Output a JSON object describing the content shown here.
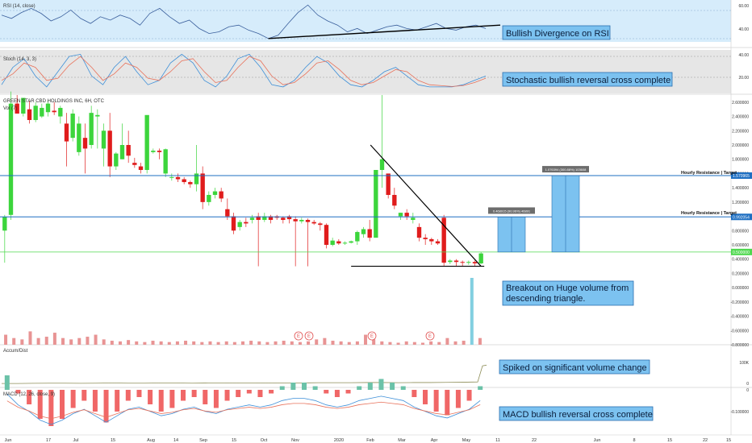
{
  "header": {
    "rsi_label": "RSI (14, close)",
    "stoch_label": "Stoch (14, 3, 3)",
    "main_label": "GREEN STAR CBD HOLDINGS INC, 6H, OTC",
    "vol_label": "Vol (7)",
    "accum_label": "Accum/Dist",
    "macd_label": "MACD (12, 26, close, 9)"
  },
  "annotations": {
    "rsi": "Bullish Divergence on RSI",
    "stoch": "Stochastic bullish reversal cross complete",
    "breakout_line1": "Breakout on Huge volume from",
    "breakout_line2": "descending triangle.",
    "accum": "Spiked on significant volume change",
    "macd": "MACD bullish reversal cross complete",
    "resistance_upper": "Hourly Resistance | Target",
    "resistance_lower": "Hourly Resistance | Target",
    "target_upper": "1.076394 (300.88%) 103608",
    "target_lower": "0.468915 (90.96%) 46891"
  },
  "events": [
    "E",
    "E",
    "E",
    "E"
  ],
  "colors": {
    "up": "#3cd53c",
    "down": "#e01c1c",
    "resistance": "#1e6fc2",
    "support": "#4fd84f",
    "target_box": "#7cc2f0",
    "rsi_bg": "#d6ecfb",
    "stoch_bg": "#e6e6e6",
    "rsi_line": "#3a5f9c",
    "stoch_k": "#3d8fd8",
    "stoch_d": "#e8715a",
    "accum_line": "#8d8d57",
    "macd_line": "#3d8fd8",
    "signal_line": "#e8715a",
    "price_label_bg": "#1e6fc2",
    "current_price_bg": "#4fd84f"
  },
  "chart_data": {
    "type": "candlestick",
    "title": "GREEN STAR CBD HOLDINGS INC, 6H, OTC",
    "x_ticks": [
      "Jun",
      "17",
      "Jul",
      "15",
      "Aug",
      "14",
      "Sep",
      "15",
      "Oct",
      "Nov",
      "2020",
      "Feb",
      "Mar",
      "Apr",
      "May",
      "11",
      "22",
      "Jun",
      "8",
      "15",
      "22",
      "15"
    ],
    "price_axis": {
      "ticks": [
        "2.600000",
        "2.400000",
        "2.200000",
        "2.000000",
        "1.800000",
        "1.600000",
        "1.400000",
        "1.200000",
        "1.000000",
        "0.800000",
        "0.600000",
        "0.400000",
        "0.200000",
        "0.000000",
        "-0.200000",
        "-0.400000",
        "-0.600000",
        "-0.800000"
      ],
      "ylim": [
        -0.8,
        2.7
      ]
    },
    "levels": {
      "resistance_upper": 1.570965,
      "resistance_upper_label": "1.570965",
      "resistance_lower": 0.992054,
      "resistance_lower_label": "0.992054",
      "current_price": 0.5,
      "current_price_label": "0.500000"
    },
    "candles": [
      [
        0.8,
        1.02,
        0.99,
        0.35
      ],
      [
        1.02,
        2.75,
        2.58,
        0.95
      ],
      [
        2.58,
        2.7,
        2.44,
        2.48
      ],
      [
        2.44,
        2.64,
        2.66,
        2.4
      ],
      [
        2.5,
        2.62,
        2.35,
        2.3
      ],
      [
        2.35,
        2.6,
        2.55,
        2.32
      ],
      [
        2.4,
        2.58,
        2.52,
        2.38
      ],
      [
        2.46,
        2.62,
        2.58,
        2.4
      ],
      [
        2.48,
        2.6,
        2.46,
        2.42
      ],
      [
        2.4,
        2.55,
        2.52,
        2.3
      ],
      [
        2.3,
        2.45,
        2.05,
        1.7
      ],
      [
        2.1,
        2.5,
        2.44,
        2.05
      ],
      [
        1.9,
        2.4,
        2.3,
        1.85
      ],
      [
        2.1,
        2.3,
        1.95,
        1.6
      ],
      [
        2.0,
        2.55,
        2.45,
        1.95
      ],
      [
        2.4,
        2.5,
        2.42,
        1.95
      ],
      [
        1.95,
        2.3,
        2.2,
        1.7
      ],
      [
        2.2,
        2.45,
        1.7,
        1.55
      ],
      [
        1.7,
        1.9,
        1.88,
        1.65
      ],
      [
        1.8,
        2.3,
        2.0,
        1.8
      ],
      [
        2.0,
        2.2,
        1.85,
        1.75
      ],
      [
        1.75,
        1.82,
        1.72,
        1.68
      ],
      [
        1.7,
        1.75,
        1.65,
        1.6
      ],
      [
        1.65,
        2.4,
        2.42,
        1.6
      ],
      [
        1.9,
        1.95,
        1.92,
        1.88
      ],
      [
        1.92,
        1.95,
        1.9,
        1.8
      ],
      [
        1.6,
        1.95,
        1.94,
        1.55
      ],
      [
        1.55,
        1.6,
        1.55,
        1.5
      ],
      [
        1.55,
        1.6,
        1.52,
        1.48
      ],
      [
        1.52,
        1.55,
        1.48,
        1.45
      ],
      [
        1.48,
        1.5,
        1.45,
        1.4
      ],
      [
        1.45,
        2.0,
        1.6,
        1.35
      ],
      [
        1.6,
        1.7,
        1.2,
        1.1
      ],
      [
        1.2,
        1.35,
        1.3,
        1.15
      ],
      [
        1.3,
        1.4,
        1.35,
        1.25
      ],
      [
        1.35,
        1.4,
        1.25,
        1.2
      ],
      [
        1.1,
        1.25,
        1.0,
        0.95
      ],
      [
        1.0,
        1.05,
        0.8,
        0.75
      ],
      [
        0.85,
        0.95,
        0.92,
        0.8
      ],
      [
        0.92,
        0.98,
        0.9,
        0.85
      ],
      [
        0.95,
        1.02,
        0.98,
        0.9
      ],
      [
        1.0,
        1.05,
        0.95,
        0.3
      ],
      [
        0.95,
        1.05,
        1.0,
        0.92
      ],
      [
        1.0,
        1.02,
        0.95,
        0.9
      ],
      [
        1.0,
        1.02,
        0.98,
        0.95
      ],
      [
        0.98,
        1.0,
        0.95,
        0.9
      ],
      [
        1.0,
        1.02,
        0.96,
        0.9
      ],
      [
        0.96,
        1.0,
        0.93,
        0.3
      ],
      [
        0.93,
        0.98,
        0.95,
        0.9
      ],
      [
        0.95,
        0.97,
        0.92,
        0.3
      ],
      [
        0.92,
        0.95,
        0.9,
        0.88
      ],
      [
        0.9,
        0.92,
        0.88,
        0.8
      ],
      [
        0.88,
        0.9,
        0.6,
        0.55
      ],
      [
        0.6,
        0.7,
        0.66,
        0.58
      ],
      [
        0.65,
        0.68,
        0.62,
        0.6
      ],
      [
        0.62,
        0.65,
        0.63,
        0.6
      ],
      [
        0.63,
        0.66,
        0.65,
        0.62
      ],
      [
        0.65,
        0.8,
        0.78,
        0.6
      ],
      [
        0.75,
        0.85,
        0.82,
        0.7
      ],
      [
        0.82,
        0.95,
        0.7,
        0.65
      ],
      [
        0.7,
        1.2,
        1.65,
        1.1
      ],
      [
        1.65,
        2.7,
        1.8,
        1.4
      ],
      [
        1.6,
        1.55,
        1.3,
        1.25
      ],
      [
        1.3,
        1.4,
        1.15,
        1.1
      ],
      [
        1.0,
        1.05,
        1.05,
        0.95
      ],
      [
        1.05,
        1.1,
        1.0,
        0.95
      ],
      [
        0.95,
        1.05,
        0.98,
        0.9
      ],
      [
        0.85,
        0.9,
        0.7,
        0.65
      ],
      [
        0.7,
        0.75,
        0.68,
        0.6
      ],
      [
        0.68,
        0.7,
        0.65,
        0.6
      ],
      [
        0.65,
        0.68,
        0.62,
        0.6
      ],
      [
        0.98,
        1.02,
        0.35,
        0.3
      ],
      [
        0.36,
        0.4,
        0.38,
        0.33
      ],
      [
        0.38,
        0.4,
        0.36,
        0.3
      ],
      [
        0.36,
        0.38,
        0.35,
        0.3
      ],
      [
        0.35,
        0.38,
        0.36,
        0.32
      ],
      [
        0.36,
        0.38,
        0.34,
        0.3
      ],
      [
        0.34,
        0.5,
        0.48,
        0.33
      ]
    ],
    "target_boxes": [
      {
        "from": 0.5,
        "to": 0.99,
        "label": "0.468915 (90.96%) 46891"
      },
      {
        "from": 0.5,
        "to": 1.57,
        "label": "1.076394 (300.88%) 103608"
      }
    ],
    "rsi": {
      "ticks": [
        "60.00",
        "40.00"
      ],
      "values": [
        62,
        58,
        65,
        70,
        64,
        55,
        60,
        68,
        58,
        52,
        60,
        56,
        62,
        58,
        50,
        64,
        70,
        60,
        52,
        56,
        46,
        40,
        42,
        48,
        50,
        44,
        40,
        34,
        38,
        52,
        65,
        74,
        62,
        55,
        50,
        42,
        46,
        40,
        44,
        48,
        50,
        46,
        44,
        48,
        52,
        46,
        44,
        48,
        50,
        46
      ]
    },
    "stoch": {
      "ticks": [
        "40.00",
        "20.00"
      ],
      "k": [
        20,
        60,
        80,
        40,
        15,
        50,
        85,
        90,
        40,
        20,
        60,
        85,
        50,
        20,
        30,
        70,
        90,
        70,
        30,
        15,
        40,
        80,
        90,
        60,
        20,
        15,
        30,
        60,
        85,
        70,
        40,
        20,
        15,
        30,
        50,
        60,
        40,
        20,
        15,
        15,
        15,
        20,
        30,
        40
      ],
      "d": [
        30,
        45,
        70,
        60,
        30,
        35,
        65,
        85,
        60,
        30,
        45,
        70,
        60,
        35,
        30,
        50,
        75,
        80,
        50,
        25,
        30,
        60,
        85,
        75,
        40,
        20,
        25,
        45,
        70,
        75,
        55,
        30,
        20,
        25,
        40,
        55,
        50,
        30,
        20,
        18,
        16,
        18,
        25,
        35
      ]
    },
    "accum": {
      "ticks": [
        "100K",
        "0"
      ],
      "values": [
        0.1,
        0.1,
        0.11,
        0.12,
        0.12,
        0.11,
        0.12,
        0.13,
        0.12,
        0.12,
        0.13,
        0.13,
        0.12,
        0.13,
        0.13,
        0.14,
        0.14,
        0.13,
        0.14,
        0.14,
        0.15,
        0.15,
        0.15,
        0.16,
        0.16,
        0.15,
        0.16,
        0.16,
        0.17,
        0.18,
        0.2,
        1.25,
        1.3
      ]
    },
    "macd": {
      "ticks": [
        "0",
        "-0.100000"
      ],
      "hist": [
        0.04,
        -0.01,
        -0.04,
        -0.08,
        -0.1,
        -0.08,
        -0.05,
        -0.03,
        -0.06,
        -0.09,
        -0.06,
        -0.03,
        -0.02,
        -0.04,
        -0.06,
        -0.05,
        -0.03,
        -0.02,
        -0.04,
        -0.05,
        -0.03,
        -0.02,
        -0.01,
        -0.02,
        -0.01,
        0.01,
        0.02,
        0.02,
        0.01,
        -0.01,
        -0.02,
        -0.01,
        0.01,
        0.02,
        0.03,
        0.02,
        0.01,
        -0.02,
        -0.04,
        -0.06,
        -0.07,
        -0.05,
        -0.03,
        0.01
      ]
    },
    "volume": {
      "ticks": [],
      "values": [
        0.15,
        0.1,
        0.08,
        0.2,
        0.1,
        0.12,
        0.18,
        0.1,
        0.08,
        0.1,
        0.12,
        0.15,
        0.08,
        0.06,
        0.05,
        0.07,
        0.05,
        0.04,
        0.06,
        0.05,
        0.04,
        0.05,
        0.06,
        0.05,
        0.04,
        0.05,
        0.04,
        0.05,
        0.04,
        0.05,
        0.06,
        0.05,
        0.04,
        0.05,
        0.06,
        0.05,
        0.04,
        0.05,
        0.08,
        0.1,
        0.06,
        0.05,
        0.04,
        0.05,
        0.15,
        0.08,
        0.05,
        0.04,
        0.03,
        0.05,
        0.04,
        0.03,
        0.05,
        0.04,
        0.1,
        0.05,
        0.06,
        1.0,
        0.1
      ]
    }
  }
}
